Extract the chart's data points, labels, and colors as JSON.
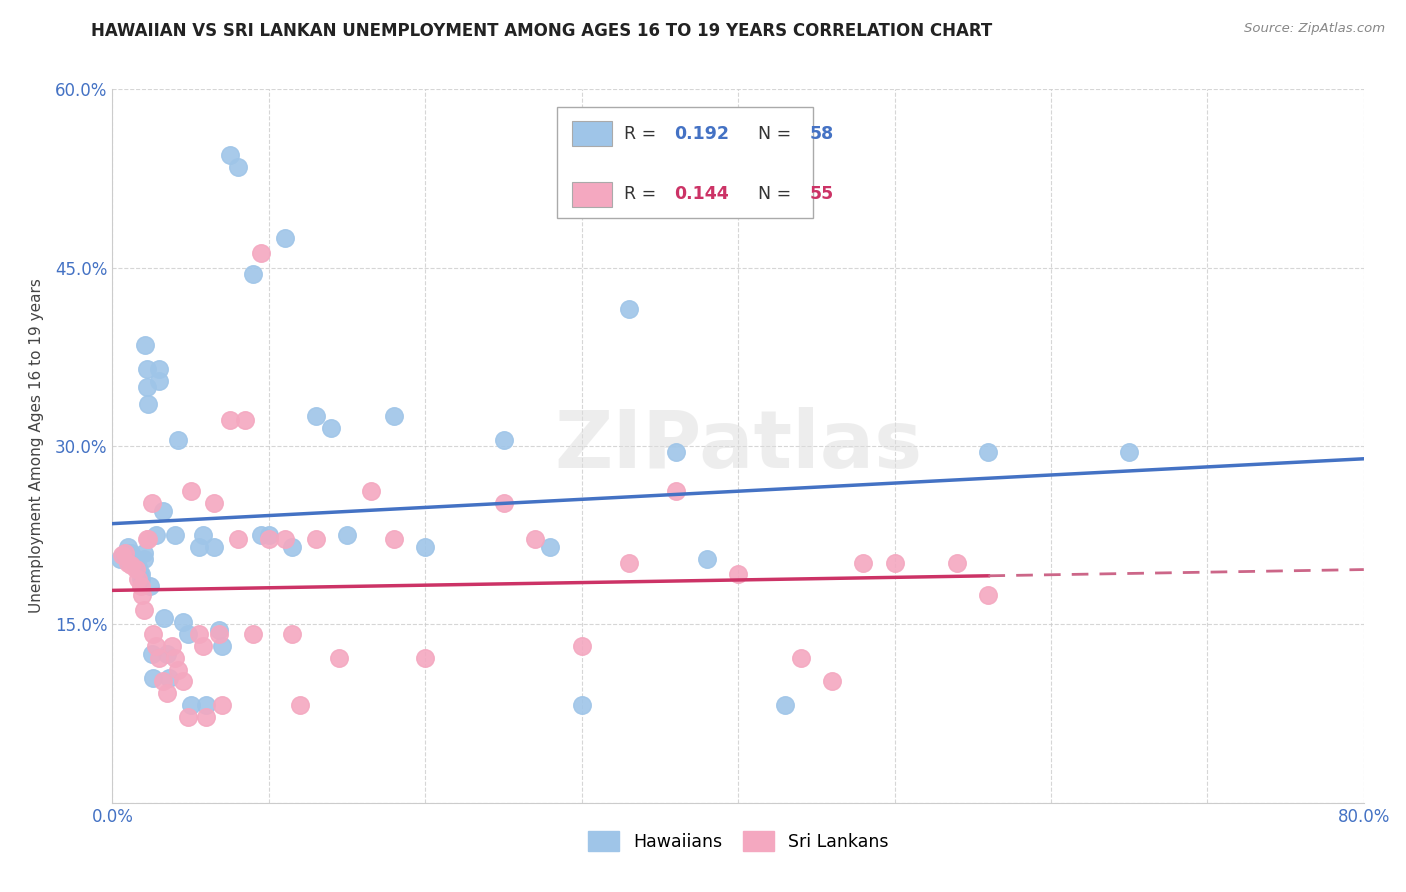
{
  "title": "HAWAIIAN VS SRI LANKAN UNEMPLOYMENT AMONG AGES 16 TO 19 YEARS CORRELATION CHART",
  "source": "Source: ZipAtlas.com",
  "ylabel": "Unemployment Among Ages 16 to 19 years",
  "xlim": [
    0.0,
    0.8
  ],
  "ylim": [
    0.0,
    0.6
  ],
  "xtick_positions": [
    0.0,
    0.1,
    0.2,
    0.3,
    0.4,
    0.5,
    0.6,
    0.7,
    0.8
  ],
  "xticklabels": [
    "0.0%",
    "",
    "",
    "",
    "",
    "",
    "",
    "",
    "80.0%"
  ],
  "ytick_positions": [
    0.0,
    0.15,
    0.3,
    0.45,
    0.6
  ],
  "yticklabels": [
    "",
    "15.0%",
    "30.0%",
    "45.0%",
    "60.0%"
  ],
  "hawaiian_x": [
    0.005,
    0.008,
    0.01,
    0.012,
    0.015,
    0.015,
    0.016,
    0.017,
    0.018,
    0.018,
    0.02,
    0.02,
    0.021,
    0.022,
    0.022,
    0.023,
    0.024,
    0.025,
    0.026,
    0.028,
    0.03,
    0.03,
    0.032,
    0.033,
    0.035,
    0.036,
    0.04,
    0.042,
    0.045,
    0.048,
    0.05,
    0.055,
    0.058,
    0.06,
    0.065,
    0.068,
    0.07,
    0.075,
    0.08,
    0.09,
    0.095,
    0.1,
    0.11,
    0.115,
    0.13,
    0.14,
    0.15,
    0.18,
    0.2,
    0.25,
    0.28,
    0.3,
    0.33,
    0.36,
    0.38,
    0.43,
    0.56,
    0.65
  ],
  "hawaiian_y": [
    0.205,
    0.21,
    0.215,
    0.21,
    0.205,
    0.2,
    0.198,
    0.195,
    0.192,
    0.188,
    0.21,
    0.205,
    0.385,
    0.365,
    0.35,
    0.335,
    0.182,
    0.125,
    0.105,
    0.225,
    0.355,
    0.365,
    0.245,
    0.155,
    0.125,
    0.105,
    0.225,
    0.305,
    0.152,
    0.142,
    0.082,
    0.215,
    0.225,
    0.082,
    0.215,
    0.145,
    0.132,
    0.545,
    0.535,
    0.445,
    0.225,
    0.225,
    0.475,
    0.215,
    0.325,
    0.315,
    0.225,
    0.325,
    0.215,
    0.305,
    0.215,
    0.082,
    0.415,
    0.295,
    0.205,
    0.082,
    0.295,
    0.295
  ],
  "srilankan_x": [
    0.006,
    0.008,
    0.01,
    0.012,
    0.015,
    0.016,
    0.018,
    0.019,
    0.02,
    0.022,
    0.023,
    0.025,
    0.026,
    0.028,
    0.03,
    0.032,
    0.035,
    0.038,
    0.04,
    0.042,
    0.045,
    0.048,
    0.05,
    0.055,
    0.058,
    0.06,
    0.065,
    0.068,
    0.07,
    0.075,
    0.08,
    0.085,
    0.09,
    0.095,
    0.1,
    0.11,
    0.115,
    0.12,
    0.13,
    0.145,
    0.165,
    0.18,
    0.2,
    0.25,
    0.27,
    0.3,
    0.33,
    0.36,
    0.4,
    0.44,
    0.46,
    0.48,
    0.5,
    0.54,
    0.56
  ],
  "srilankan_y": [
    0.208,
    0.21,
    0.202,
    0.2,
    0.197,
    0.188,
    0.182,
    0.175,
    0.162,
    0.222,
    0.222,
    0.252,
    0.142,
    0.132,
    0.122,
    0.102,
    0.092,
    0.132,
    0.122,
    0.112,
    0.102,
    0.072,
    0.262,
    0.142,
    0.132,
    0.072,
    0.252,
    0.142,
    0.082,
    0.322,
    0.222,
    0.322,
    0.142,
    0.462,
    0.222,
    0.222,
    0.142,
    0.082,
    0.222,
    0.122,
    0.262,
    0.222,
    0.122,
    0.252,
    0.222,
    0.132,
    0.202,
    0.262,
    0.192,
    0.122,
    0.102,
    0.202,
    0.202,
    0.202,
    0.175
  ],
  "hawaiian_color": "#9fc5e8",
  "srilankan_color": "#f4a8c0",
  "hawaiian_line_color": "#4472c4",
  "srilankan_line_color": "#cc3366",
  "srilankan_dash_color": "#cc6688",
  "background_color": "#ffffff",
  "grid_color": "#cccccc",
  "watermark": "ZIPatlas",
  "legend_r_blue": "0.192",
  "legend_n_blue": "58",
  "legend_r_pink": "0.144",
  "legend_n_pink": "55",
  "bottom_legend_hawaiians": "Hawaiians",
  "bottom_legend_srilankans": "Sri Lankans"
}
